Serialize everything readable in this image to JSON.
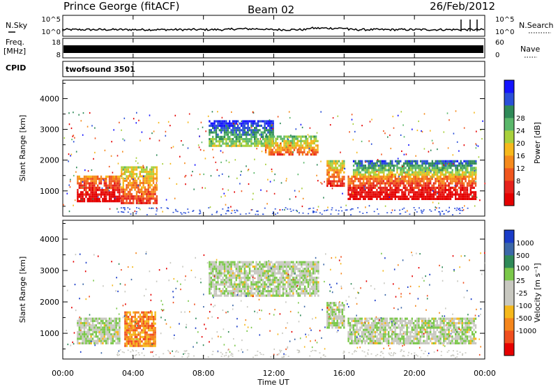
{
  "header": {
    "station": "Prince George (fitACF)",
    "beam": "Beam 02",
    "date": "26/Feb/2012"
  },
  "strip_labels": {
    "nsky": "N.Sky",
    "nsearch": "N.Search",
    "freq_line1": "Freq.",
    "freq_line2": "[MHz]",
    "nave": "Nave",
    "cpid": "CPID",
    "cpid_value": "twofsound 3501",
    "nsky_ticks": [
      "10^5",
      "10^0"
    ],
    "nsearch_ticks": [
      "10^5",
      "10^0"
    ],
    "freq_ticks": [
      "18",
      "8"
    ],
    "nave_ticks": [
      "60",
      "0"
    ]
  },
  "x_axis": {
    "label": "Time UT",
    "ticks": [
      "00:00",
      "04:00",
      "08:00",
      "12:00",
      "16:00",
      "20:00",
      "00:00"
    ]
  },
  "chart_data": [
    {
      "type": "heatmap",
      "ylabel": "Slant Range [km]",
      "yticks": [
        1000,
        2000,
        3000,
        4000
      ],
      "ylim": [
        180,
        4600
      ],
      "xlim_hours": [
        0,
        24
      ],
      "colorbar": {
        "label": "Power [dB]",
        "ticks": [
          "4",
          "8",
          "12",
          "16",
          "20",
          "24",
          "28"
        ],
        "colors": [
          "#1414ff",
          "#2a4fd8",
          "#2f8a58",
          "#5ab76a",
          "#a8d03c",
          "#f6b81c",
          "#f58a1c",
          "#f0561e",
          "#e6221c",
          "#e50000"
        ]
      },
      "regions": [
        {
          "t0": 0.8,
          "t1": 3.2,
          "r0": 700,
          "r1": 1500,
          "level": 8
        },
        {
          "t0": 3.3,
          "t1": 5.3,
          "r0": 600,
          "r1": 1800,
          "level": 6
        },
        {
          "t0": 8.3,
          "t1": 12.0,
          "r0": 2500,
          "r1": 3300,
          "level": 2
        },
        {
          "t0": 11.5,
          "t1": 14.5,
          "r0": 2200,
          "r1": 2800,
          "level": 5
        },
        {
          "t0": 15.0,
          "t1": 16.0,
          "r0": 1200,
          "r1": 2000,
          "level": 6
        },
        {
          "t0": 16.2,
          "t1": 23.5,
          "r0": 750,
          "r1": 1500,
          "level": 8
        },
        {
          "t0": 16.5,
          "t1": 23.5,
          "r0": 1500,
          "r1": 2000,
          "level": 3
        }
      ]
    },
    {
      "type": "heatmap",
      "ylabel": "Slant Range [km]",
      "yticks": [
        1000,
        2000,
        3000,
        4000
      ],
      "ylim": [
        180,
        4600
      ],
      "xlim_hours": [
        0,
        24
      ],
      "colorbar": {
        "label": "Velocity [m s⁻¹]",
        "ticks": [
          "1000",
          "500",
          "100",
          "25",
          "-25",
          "-100",
          "-500",
          "-1000"
        ],
        "colors": [
          "#1a3cc8",
          "#3c68a8",
          "#2f8a58",
          "#7bc84a",
          "#c8c8c0",
          "#c8c8c0",
          "#f5b81c",
          "#f5861c",
          "#f04e1e",
          "#e60000"
        ]
      },
      "regions": [
        {
          "t0": 0.8,
          "t1": 3.2,
          "r0": 700,
          "r1": 1500,
          "level": 4
        },
        {
          "t0": 3.5,
          "t1": 5.3,
          "r0": 600,
          "r1": 1700,
          "level": 7
        },
        {
          "t0": 8.3,
          "t1": 14.5,
          "r0": 2200,
          "r1": 3300,
          "level": 4
        },
        {
          "t0": 15.0,
          "t1": 16.0,
          "r0": 1200,
          "r1": 2000,
          "level": 4
        },
        {
          "t0": 16.2,
          "t1": 23.5,
          "r0": 700,
          "r1": 1500,
          "level": 4
        }
      ]
    }
  ]
}
